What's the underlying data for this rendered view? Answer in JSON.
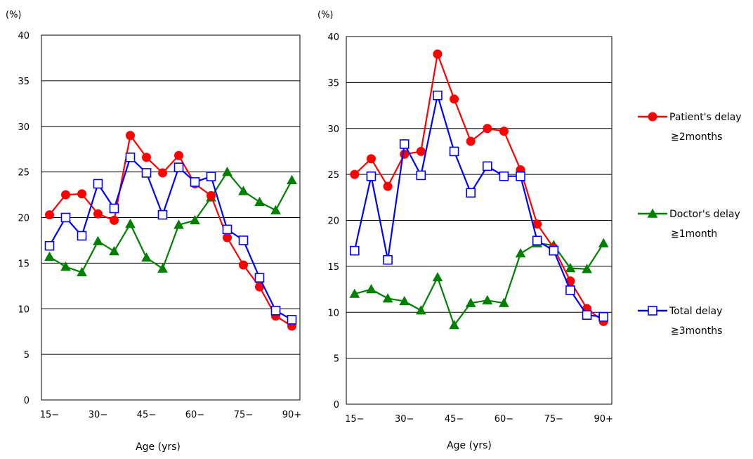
{
  "chart_data": [
    {
      "type": "line",
      "ylabel": "(%)",
      "xlabel": "Age (yrs)",
      "ylim": [
        0,
        40
      ],
      "yticks": [
        "0",
        "5",
        "10",
        "15",
        "20",
        "25",
        "30",
        "35",
        "40"
      ],
      "x": [
        "15-",
        "20-",
        "25-",
        "30-",
        "35-",
        "40-",
        "45-",
        "50-",
        "55-",
        "60-",
        "65-",
        "70-",
        "75-",
        "80-",
        "85-",
        "90+"
      ],
      "xtick_labels": [
        "15−",
        "30−",
        "45−",
        "60−",
        "75−",
        "90+"
      ],
      "grid": true,
      "series": [
        {
          "name": "Patient's delay ≧2months",
          "color": "#ff0000",
          "marker": "circle",
          "values": [
            20.3,
            22.5,
            22.6,
            20.4,
            19.7,
            29.0,
            26.6,
            24.9,
            26.8,
            23.7,
            22.4,
            17.8,
            14.8,
            12.4,
            9.2,
            8.1
          ]
        },
        {
          "name": "Doctor's delay ≧1month",
          "color": "#008000",
          "marker": "triangle",
          "values": [
            15.7,
            14.6,
            14.0,
            17.4,
            16.3,
            19.3,
            15.6,
            14.4,
            19.2,
            19.7,
            22.2,
            25.0,
            22.9,
            21.7,
            20.8,
            24.1
          ]
        },
        {
          "name": "Total delay ≧3months",
          "color": "#0000ff",
          "marker": "square",
          "values": [
            16.9,
            20.0,
            18.0,
            23.7,
            21.0,
            26.6,
            24.9,
            20.3,
            25.5,
            23.9,
            24.5,
            18.7,
            17.5,
            13.4,
            9.8,
            8.8
          ]
        }
      ]
    },
    {
      "type": "line",
      "ylabel": "(%)",
      "xlabel": "Age (yrs)",
      "ylim": [
        0,
        40
      ],
      "yticks": [
        "0",
        "5",
        "10",
        "15",
        "20",
        "25",
        "30",
        "35",
        "40"
      ],
      "x": [
        "15-",
        "20-",
        "25-",
        "30-",
        "35-",
        "40-",
        "45-",
        "50-",
        "55-",
        "60-",
        "65-",
        "70-",
        "75-",
        "80-",
        "85-",
        "90+"
      ],
      "xtick_labels": [
        "15−",
        "30−",
        "45−",
        "60−",
        "75−",
        "90+"
      ],
      "grid": true,
      "series": [
        {
          "name": "Patient's delay ≧2months",
          "color": "#ff0000",
          "marker": "circle",
          "values": [
            25.0,
            26.7,
            23.7,
            27.2,
            27.5,
            38.1,
            33.2,
            28.6,
            30.0,
            29.7,
            25.5,
            19.6,
            17.0,
            13.4,
            10.4,
            9.0
          ]
        },
        {
          "name": "Doctor's delay ≧1month",
          "color": "#008000",
          "marker": "triangle",
          "values": [
            12.0,
            12.5,
            11.5,
            11.2,
            10.2,
            13.8,
            8.6,
            11.0,
            11.3,
            11.0,
            16.4,
            17.5,
            17.3,
            14.8,
            14.7,
            17.5
          ]
        },
        {
          "name": "Total delay ≧3months",
          "color": "#0000ff",
          "marker": "square",
          "values": [
            16.7,
            24.8,
            15.7,
            28.3,
            24.9,
            33.6,
            27.5,
            23.0,
            25.9,
            24.8,
            24.8,
            17.8,
            16.7,
            12.4,
            9.7,
            9.5
          ]
        }
      ]
    }
  ],
  "legend": {
    "placement": "right",
    "items": [
      {
        "line1": "Patient's delay",
        "line2": "≧2months",
        "color": "#ff0000",
        "marker": "circle"
      },
      {
        "line1": "Doctor's delay",
        "line2": "≧1month",
        "color": "#008000",
        "marker": "triangle"
      },
      {
        "line1": "Total delay",
        "line2": "≧3months",
        "color": "#0000ff",
        "marker": "square"
      }
    ]
  }
}
